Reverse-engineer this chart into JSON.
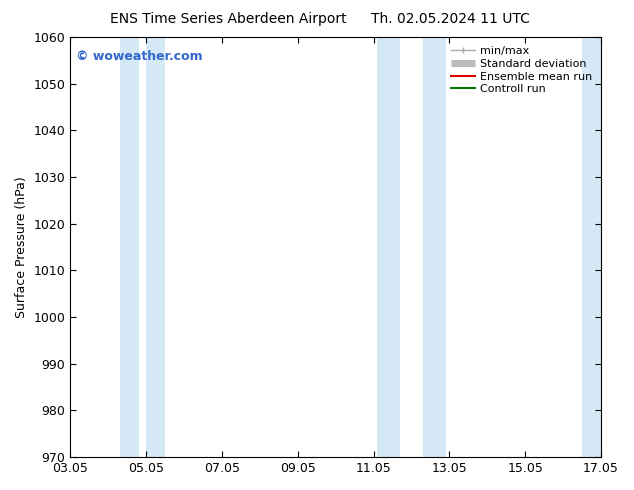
{
  "title_left": "ENS Time Series Aberdeen Airport",
  "title_right": "Th. 02.05.2024 11 UTC",
  "ylabel": "Surface Pressure (hPa)",
  "ylim": [
    970,
    1060
  ],
  "yticks": [
    970,
    980,
    990,
    1000,
    1010,
    1020,
    1030,
    1040,
    1050,
    1060
  ],
  "xlim": [
    0,
    14
  ],
  "xtick_positions": [
    0,
    2,
    4,
    6,
    8,
    10,
    12,
    14
  ],
  "xtick_labels": [
    "03.05",
    "05.05",
    "07.05",
    "09.05",
    "11.05",
    "13.05",
    "15.05",
    "17.05"
  ],
  "shaded_bands": [
    {
      "xmin": 1.3,
      "xmax": 1.8
    },
    {
      "xmin": 2.0,
      "xmax": 2.5
    },
    {
      "xmin": 8.1,
      "xmax": 8.7
    },
    {
      "xmin": 9.3,
      "xmax": 9.9
    },
    {
      "xmin": 13.5,
      "xmax": 14.0
    }
  ],
  "band_color": "#d4e8f5",
  "watermark": "© woweather.com",
  "watermark_color": "#3366cc",
  "legend_items": [
    {
      "label": "min/max",
      "color": "#aaaaaa",
      "lw": 1.0
    },
    {
      "label": "Standard deviation",
      "color": "#bbbbbb",
      "lw": 5
    },
    {
      "label": "Ensemble mean run",
      "color": "#dd0000",
      "lw": 1.5
    },
    {
      "label": "Controll run",
      "color": "#007700",
      "lw": 1.5
    }
  ],
  "background_color": "#ffffff",
  "title_fontsize": 10,
  "axis_label_fontsize": 9,
  "tick_fontsize": 9,
  "legend_fontsize": 8,
  "watermark_fontsize": 9
}
